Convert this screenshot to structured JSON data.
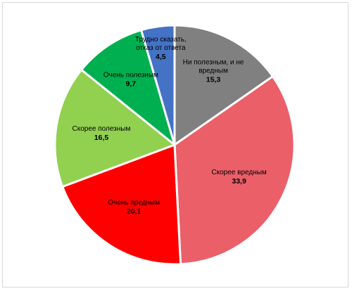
{
  "chart_data": {
    "type": "pie",
    "title": "",
    "start_angle_deg": 0,
    "direction": "clockwise",
    "slices": [
      {
        "name": "Ни полезным, и не вредным",
        "label_lines": [
          "Ни полезным, и не",
          "вредным"
        ],
        "value": 15.3,
        "value_text": "15,3",
        "color": "#808080"
      },
      {
        "name": "Скорее вредным",
        "label_lines": [
          "Скорее вредным"
        ],
        "value": 33.9,
        "value_text": "33,9",
        "color": "#EB5F69"
      },
      {
        "name": "Очень вредным",
        "label_lines": [
          "Очень вредным"
        ],
        "value": 20.1,
        "value_text": "20,1",
        "color": "#FF0000"
      },
      {
        "name": "Скорее полезным",
        "label_lines": [
          "Скорее полезным"
        ],
        "value": 16.5,
        "value_text": "16,5",
        "color": "#92D050"
      },
      {
        "name": "Очень полезным",
        "label_lines": [
          "Очень полезным"
        ],
        "value": 9.7,
        "value_text": "9,7",
        "color": "#00B050"
      },
      {
        "name": "Трудно сказать, отказ от ответа",
        "label_lines": [
          "Трудно сказать,",
          "отказ от ответа"
        ],
        "value": 4.5,
        "value_text": "4,5",
        "color": "#4472C4"
      }
    ]
  }
}
